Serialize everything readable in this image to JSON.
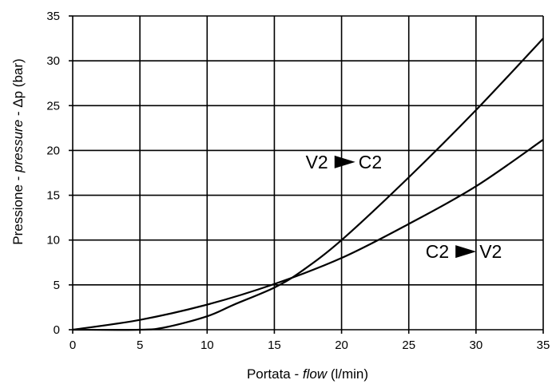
{
  "chart_data": {
    "type": "line",
    "xlabel": {
      "prefix": "Portata - ",
      "italic": "flow",
      "suffix": " (l/min)"
    },
    "ylabel": {
      "prefix": "Pressione - ",
      "italic": "pressure",
      "suffix": " - Δp (bar)"
    },
    "xlim": [
      0,
      35
    ],
    "ylim": [
      0,
      35
    ],
    "xticks": [
      0,
      5,
      10,
      15,
      20,
      25,
      30,
      35
    ],
    "yticks": [
      0,
      5,
      10,
      15,
      20,
      25,
      30,
      35
    ],
    "grid": true,
    "series": [
      {
        "name": "V2 ► C2",
        "points": [
          [
            0,
            0
          ],
          [
            5,
            0
          ],
          [
            7,
            0.3
          ],
          [
            10,
            1.5
          ],
          [
            12,
            2.8
          ],
          [
            15,
            4.7
          ],
          [
            17,
            6.5
          ],
          [
            20,
            10
          ],
          [
            25,
            17
          ],
          [
            30,
            24.5
          ],
          [
            35,
            32.5
          ]
        ]
      },
      {
        "name": "C2 ► V2",
        "points": [
          [
            0,
            0
          ],
          [
            5,
            1.1
          ],
          [
            10,
            2.8
          ],
          [
            15,
            5.1
          ],
          [
            20,
            8
          ],
          [
            25,
            11.8
          ],
          [
            30,
            16
          ],
          [
            35,
            21.2
          ]
        ]
      }
    ],
    "annotations": [
      {
        "text_a": "V2",
        "text_b": "C2",
        "x": 19,
        "y": 18
      },
      {
        "text_a": "C2",
        "text_b": "V2",
        "x": 28,
        "y": 8
      }
    ]
  }
}
